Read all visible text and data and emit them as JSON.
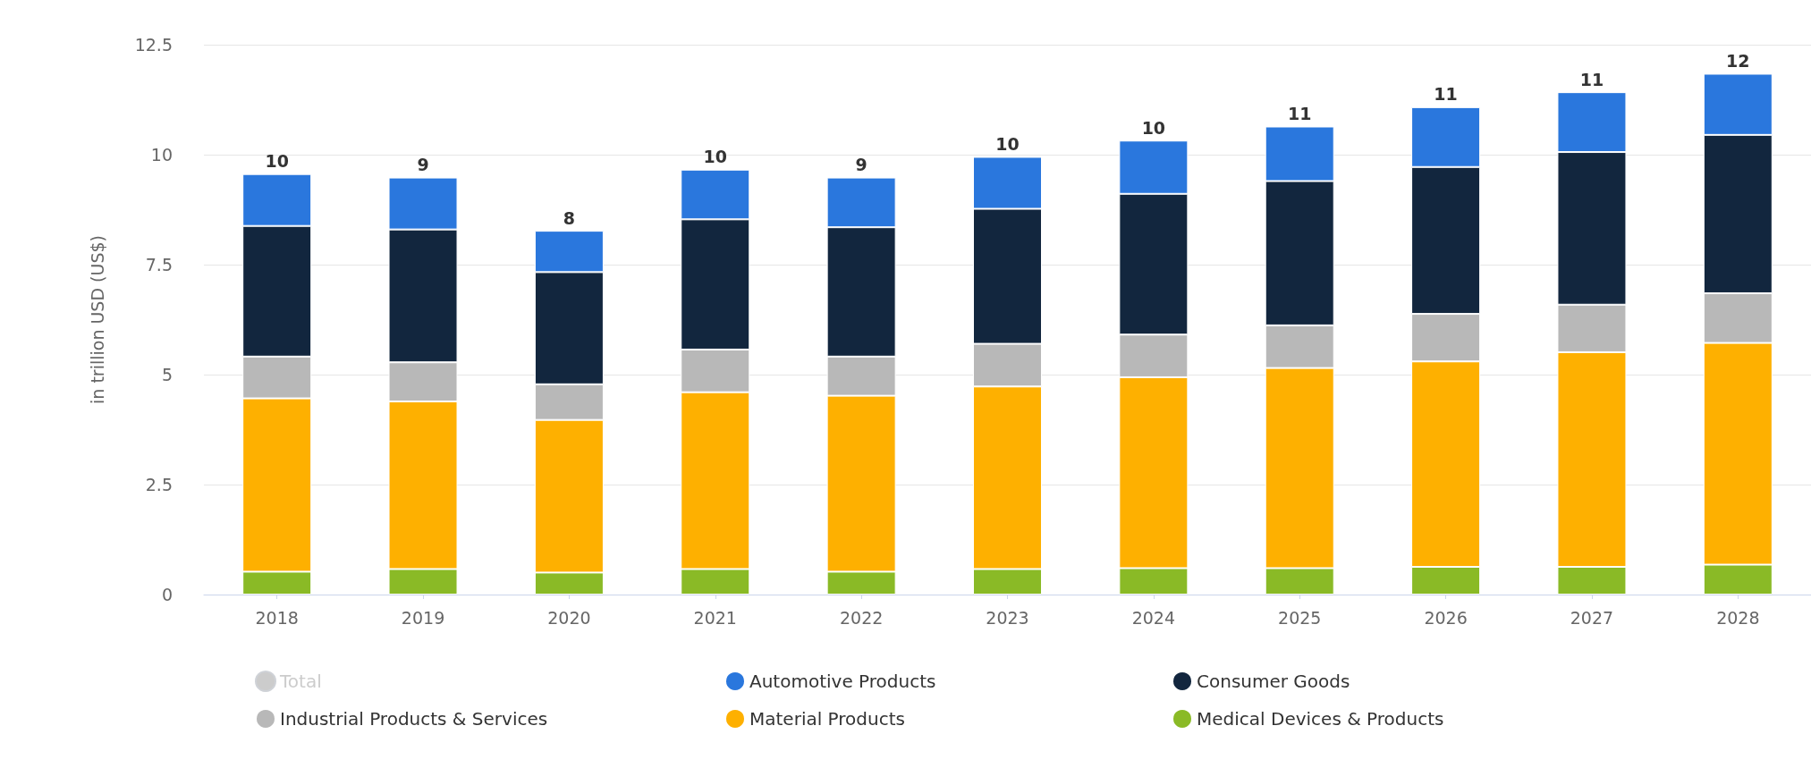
{
  "chart_data": {
    "type": "bar",
    "stacked": true,
    "ylabel": "in trillion USD (US$)",
    "categories": [
      "2018",
      "2019",
      "2020",
      "2021",
      "2022",
      "2023",
      "2024",
      "2025",
      "2026",
      "2027",
      "2028"
    ],
    "series": [
      {
        "name": "Medical Devices & Products",
        "color": "#8aba26",
        "values": [
          0.52,
          0.58,
          0.5,
          0.58,
          0.52,
          0.58,
          0.6,
          0.6,
          0.63,
          0.63,
          0.68
        ]
      },
      {
        "name": "Material Products",
        "color": "#feb000",
        "values": [
          3.94,
          3.81,
          3.47,
          4.02,
          4.0,
          4.15,
          4.34,
          4.55,
          4.67,
          4.88,
          5.04
        ]
      },
      {
        "name": "Industrial Products & Services",
        "color": "#b8b8b8",
        "values": [
          0.95,
          0.89,
          0.81,
          0.97,
          0.89,
          0.97,
          0.97,
          0.97,
          1.08,
          1.08,
          1.13
        ]
      },
      {
        "name": "Consumer Goods",
        "color": "#12263e",
        "values": [
          2.97,
          3.02,
          2.55,
          2.96,
          2.94,
          3.07,
          3.2,
          3.28,
          3.34,
          3.47,
          3.6
        ]
      },
      {
        "name": "Automotive Products",
        "color": "#2a77dd",
        "values": [
          1.18,
          1.18,
          0.94,
          1.13,
          1.13,
          1.18,
          1.21,
          1.24,
          1.36,
          1.36,
          1.39
        ]
      },
      {
        "name": "Total",
        "color": "#cccccc",
        "values": [
          null,
          null,
          null,
          null,
          null,
          null,
          null,
          null,
          null,
          null,
          null
        ]
      }
    ],
    "totals": [
      "10",
      "9",
      "8",
      "10",
      "9",
      "10",
      "10",
      "11",
      "11",
      "11",
      "12"
    ],
    "ylim": [
      0,
      12.5
    ],
    "yticks": [
      0,
      2.5,
      5,
      7.5,
      10,
      12.5
    ],
    "grid": "y",
    "legend": "bottom"
  }
}
